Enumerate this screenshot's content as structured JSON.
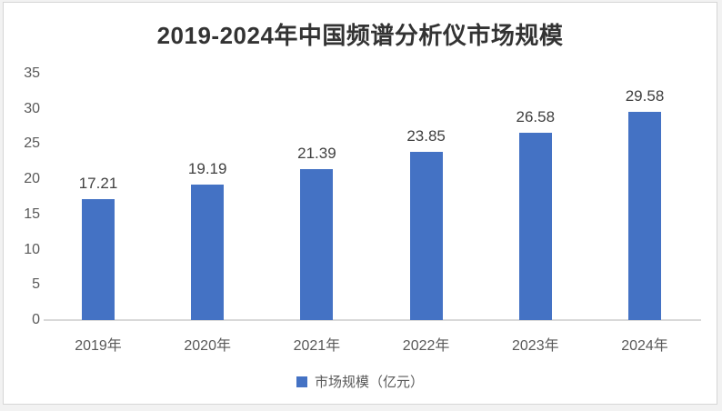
{
  "chart_data": {
    "type": "bar",
    "title": "2019-2024年中国频谱分析仪市场规模",
    "categories": [
      "2019年",
      "2020年",
      "2021年",
      "2022年",
      "2023年",
      "2024年"
    ],
    "values": [
      17.21,
      19.19,
      21.39,
      23.85,
      26.58,
      29.58
    ],
    "data_labels": [
      "17.21",
      "19.19",
      "21.39",
      "23.85",
      "26.58",
      "29.58"
    ],
    "series_name": "市场规模（亿元）",
    "xlabel": "",
    "ylabel": "",
    "ylim": [
      0,
      35
    ],
    "y_ticks": [
      0,
      5,
      10,
      15,
      20,
      25,
      30,
      35
    ],
    "grid": false,
    "legend_position": "bottom",
    "colors": {
      "bar": "#4472c4",
      "axis_line": "#d9d9d9",
      "axis_text": "#595959",
      "data_label_text": "#404040",
      "title_text": "#333333"
    }
  }
}
